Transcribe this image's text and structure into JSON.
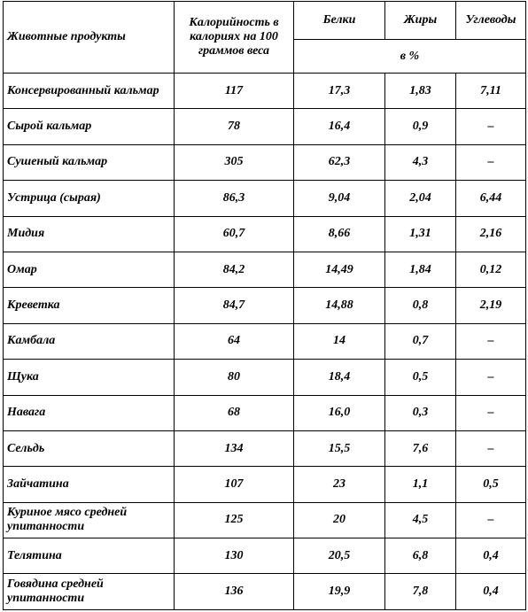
{
  "header": {
    "product": "Животные продукты",
    "calories": "Калорийность в калориях на 100 граммов веса",
    "protein": "Белки",
    "fat": "Жиры",
    "carbs": "Углеводы",
    "percent": "в %"
  },
  "rows": [
    {
      "name": "Консервированный кальмар",
      "calories": "117",
      "protein": "17,3",
      "fat": "1,83",
      "carbs": "7,11"
    },
    {
      "name": "Сырой кальмар",
      "calories": "78",
      "protein": "16,4",
      "fat": "0,9",
      "carbs": "–"
    },
    {
      "name": "Сушеный кальмар",
      "calories": "305",
      "protein": "62,3",
      "fat": "4,3",
      "carbs": "–"
    },
    {
      "name": "Устрица (сырая)",
      "calories": "86,3",
      "protein": "9,04",
      "fat": "2,04",
      "carbs": "6,44"
    },
    {
      "name": "Мидия",
      "calories": "60,7",
      "protein": "8,66",
      "fat": "1,31",
      "carbs": "2,16"
    },
    {
      "name": "Омар",
      "calories": "84,2",
      "protein": "14,49",
      "fat": "1,84",
      "carbs": "0,12"
    },
    {
      "name": "Креветка",
      "calories": "84,7",
      "protein": "14,88",
      "fat": "0,8",
      "carbs": "2,19"
    },
    {
      "name": "Камбала",
      "calories": "64",
      "protein": "14",
      "fat": "0,7",
      "carbs": "–"
    },
    {
      "name": "Щука",
      "calories": "80",
      "protein": "18,4",
      "fat": "0,5",
      "carbs": "–"
    },
    {
      "name": "Навага",
      "calories": "68",
      "protein": "16,0",
      "fat": "0,3",
      "carbs": "–"
    },
    {
      "name": "Сельдь",
      "calories": "134",
      "protein": "15,5",
      "fat": "7,6",
      "carbs": "–"
    },
    {
      "name": "Зайчатина",
      "calories": "107",
      "protein": "23",
      "fat": "1,1",
      "carbs": "0,5"
    },
    {
      "name": "Куриное мясо средней упитанности",
      "calories": "125",
      "protein": "20",
      "fat": "4,5",
      "carbs": "–"
    },
    {
      "name": "Телятина",
      "calories": "130",
      "protein": "20,5",
      "fat": "6,8",
      "carbs": "0,4"
    },
    {
      "name": "Говядина средней упитанности",
      "calories": "136",
      "protein": "19,9",
      "fat": "7,8",
      "carbs": "0,4"
    }
  ]
}
